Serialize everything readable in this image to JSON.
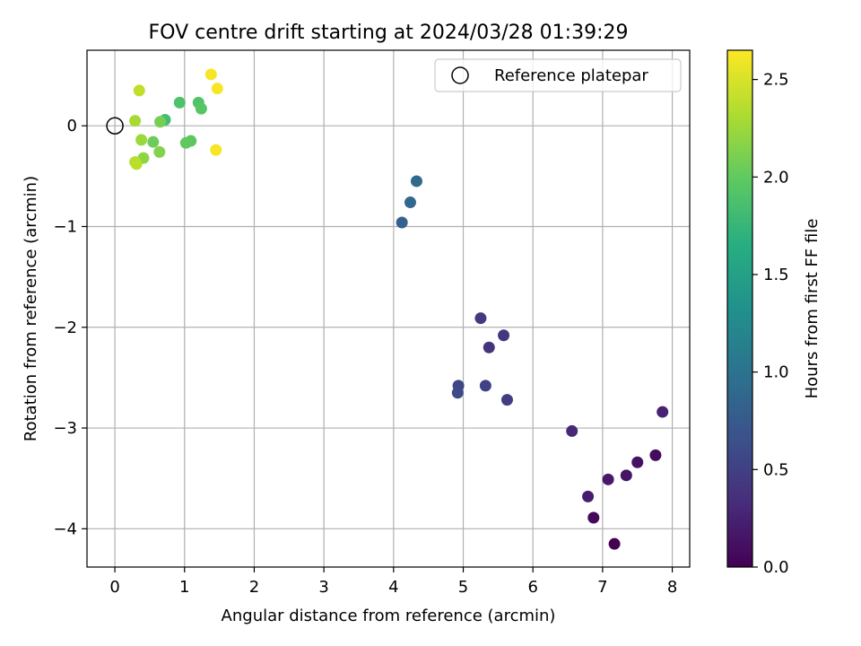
{
  "chart_data": {
    "type": "scatter",
    "title": "FOV centre drift starting at 2024/03/28 01:39:29",
    "xlabel": "Angular distance from reference (arcmin)",
    "ylabel": "Rotation from reference (arcmin)",
    "xlim": [
      -0.4,
      8.25
    ],
    "ylim": [
      -4.38,
      0.75
    ],
    "x_ticks": [
      0,
      1,
      2,
      3,
      4,
      5,
      6,
      7,
      8
    ],
    "x_tick_labels": [
      "0",
      "1",
      "2",
      "3",
      "4",
      "5",
      "6",
      "7",
      "8"
    ],
    "y_ticks": [
      -4,
      -3,
      -2,
      -1,
      0
    ],
    "y_tick_labels": [
      "−4",
      "−3",
      "−2",
      "−1",
      "0"
    ],
    "grid": true,
    "legend": {
      "placement": "top-right",
      "entries": [
        "Reference platepar"
      ]
    },
    "reference_point": {
      "x": 0,
      "y": 0,
      "label": "Reference platepar"
    },
    "colorbar": {
      "label": "Hours from first FF file",
      "colormap": "viridis",
      "range": [
        0.0,
        2.65
      ],
      "ticks": [
        0.0,
        0.5,
        1.0,
        1.5,
        2.0,
        2.5
      ],
      "tick_labels": [
        "0.0",
        "0.5",
        "1.0",
        "1.5",
        "2.0",
        "2.5"
      ]
    },
    "points": [
      {
        "x": 7.17,
        "y": -4.15,
        "hours": 0.0
      },
      {
        "x": 6.87,
        "y": -3.89,
        "hours": 0.05
      },
      {
        "x": 7.76,
        "y": -3.27,
        "hours": 0.08
      },
      {
        "x": 7.5,
        "y": -3.34,
        "hours": 0.12
      },
      {
        "x": 7.34,
        "y": -3.47,
        "hours": 0.15
      },
      {
        "x": 7.08,
        "y": -3.51,
        "hours": 0.18
      },
      {
        "x": 6.79,
        "y": -3.68,
        "hours": 0.22
      },
      {
        "x": 7.86,
        "y": -2.84,
        "hours": 0.25
      },
      {
        "x": 6.56,
        "y": -3.03,
        "hours": 0.3
      },
      {
        "x": 5.37,
        "y": -2.2,
        "hours": 0.4
      },
      {
        "x": 5.58,
        "y": -2.08,
        "hours": 0.42
      },
      {
        "x": 5.25,
        "y": -1.91,
        "hours": 0.45
      },
      {
        "x": 5.63,
        "y": -2.72,
        "hours": 0.48
      },
      {
        "x": 5.32,
        "y": -2.58,
        "hours": 0.52
      },
      {
        "x": 4.93,
        "y": -2.58,
        "hours": 0.55
      },
      {
        "x": 4.92,
        "y": -2.65,
        "hours": 0.6
      },
      {
        "x": 4.12,
        "y": -0.96,
        "hours": 0.82
      },
      {
        "x": 4.24,
        "y": -0.76,
        "hours": 0.87
      },
      {
        "x": 4.33,
        "y": -0.55,
        "hours": 0.92
      },
      {
        "x": 0.72,
        "y": 0.06,
        "hours": 1.85
      },
      {
        "x": 0.93,
        "y": 0.23,
        "hours": 1.9
      },
      {
        "x": 1.2,
        "y": 0.23,
        "hours": 1.92
      },
      {
        "x": 1.24,
        "y": 0.17,
        "hours": 1.95
      },
      {
        "x": 1.09,
        "y": -0.15,
        "hours": 1.97
      },
      {
        "x": 1.02,
        "y": -0.17,
        "hours": 2.0
      },
      {
        "x": 0.55,
        "y": -0.16,
        "hours": 2.05
      },
      {
        "x": 0.65,
        "y": 0.04,
        "hours": 2.1
      },
      {
        "x": 0.64,
        "y": -0.26,
        "hours": 2.15
      },
      {
        "x": 0.41,
        "y": -0.32,
        "hours": 2.2
      },
      {
        "x": 0.38,
        "y": -0.14,
        "hours": 2.25
      },
      {
        "x": 0.29,
        "y": 0.05,
        "hours": 2.3
      },
      {
        "x": 0.29,
        "y": -0.36,
        "hours": 2.35
      },
      {
        "x": 0.31,
        "y": -0.38,
        "hours": 2.38
      },
      {
        "x": 0.35,
        "y": 0.35,
        "hours": 2.4
      },
      {
        "x": 1.38,
        "y": 0.51,
        "hours": 2.62
      },
      {
        "x": 1.47,
        "y": 0.37,
        "hours": 2.62
      },
      {
        "x": 1.45,
        "y": -0.24,
        "hours": 2.62
      }
    ]
  }
}
